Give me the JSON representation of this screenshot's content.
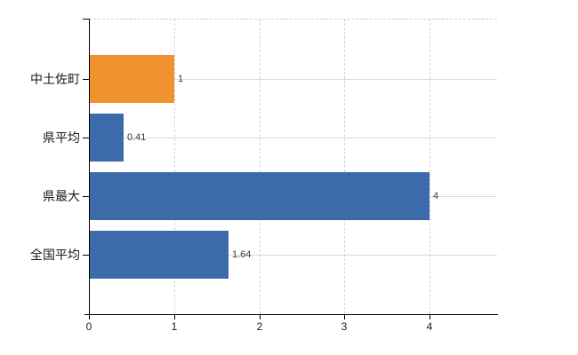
{
  "chart_data": {
    "type": "bar",
    "orientation": "horizontal",
    "title": "",
    "xlabel": "",
    "ylabel": "",
    "categories": [
      "中土佐町",
      "県平均",
      "県最大",
      "全国平均"
    ],
    "values": [
      1,
      0.41,
      4,
      1.64
    ],
    "value_labels": [
      "1",
      "0.41",
      "4",
      "1.64"
    ],
    "bar_colors": [
      "#f0922f",
      "#3c6bab",
      "#3c6bab",
      "#3c6bab"
    ],
    "highlight_color": "#f0922f",
    "base_color": "#3c6bab",
    "xlim": [
      0,
      4.79
    ],
    "x_ticks": [
      0,
      1,
      2,
      3,
      4
    ],
    "x_tick_labels": [
      "0",
      "1",
      "2",
      "3",
      "4"
    ],
    "grid": true,
    "gridline_color_h": "#d6ded6",
    "gridline_color_v": "#d3d3da",
    "axis_color": "#000000",
    "legend": null
  }
}
